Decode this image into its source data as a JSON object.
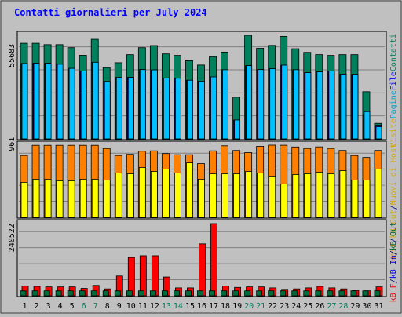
{
  "chart_data": {
    "type": "bar",
    "title": "Contatti giornalieri per July 2024",
    "categories": [
      "1",
      "2",
      "3",
      "4",
      "5",
      "6",
      "7",
      "8",
      "9",
      "10",
      "11",
      "12",
      "13",
      "14",
      "15",
      "16",
      "17",
      "18",
      "19",
      "20",
      "21",
      "22",
      "23",
      "24",
      "25",
      "26",
      "27",
      "28",
      "29",
      "30",
      "31"
    ],
    "weekend_days": [
      "6",
      "7",
      "13",
      "14",
      "20",
      "21",
      "27",
      "28"
    ],
    "panels": [
      {
        "id": "top",
        "y_tick_label": "55683",
        "y_tick_value": 55683,
        "legend": [
          "Visite",
          "Pagine",
          "File",
          "Contatti"
        ],
        "series": [
          {
            "name": "Contatti",
            "color": "#00805c",
            "values": [
              62800,
              62800,
              61900,
              61900,
              59900,
              54900,
              65400,
              46800,
              50000,
              55300,
              59900,
              61300,
              55800,
              54800,
              51300,
              48500,
              53800,
              57000,
              27400,
              68000,
              59500,
              61400,
              67300,
              59200,
              56800,
              55300,
              54800,
              55300,
              55300,
              31000,
              10200
            ]
          },
          {
            "name": "File",
            "color": "#0000ff",
            "values": [
              49500,
              49700,
              49700,
              49000,
              46300,
              44600,
              50300,
              37700,
              40300,
              40400,
              45500,
              45300,
              40000,
              39800,
              38500,
              37900,
              40700,
              45400,
              12400,
              48100,
              45500,
              46100,
              48400,
              45400,
              43500,
              44000,
              44600,
              42500,
              42400,
              16100,
              9000
            ]
          },
          {
            "name": "Pagine",
            "color": "#00c0ff",
            "values": [
              49500,
              49700,
              49700,
              49000,
              46300,
              44600,
              50300,
              37700,
              40300,
              40400,
              45500,
              45300,
              40000,
              39800,
              38500,
              37900,
              40700,
              45400,
              12400,
              48100,
              45500,
              46100,
              48400,
              45400,
              43500,
              44000,
              44600,
              42500,
              42400,
              17900,
              8000
            ]
          },
          {
            "name": "Visite",
            "color": "#00c0ff",
            "values": [
              0,
              0,
              0,
              0,
              0,
              0,
              0,
              0,
              0,
              0,
              0,
              0,
              0,
              0,
              0,
              0,
              0,
              0,
              0,
              0,
              0,
              0,
              0,
              0,
              0,
              0,
              0,
              0,
              0,
              0,
              0
            ]
          }
        ]
      },
      {
        "id": "middle",
        "y_tick_label": "961",
        "y_tick_value": 961,
        "legend": [
          "Host",
          "kB Out",
          "Nuovi di Host"
        ],
        "series": [
          {
            "name": "Host",
            "color": "#ff8000",
            "values": [
              795,
              926,
              926,
              926,
              926,
              926,
              926,
              885,
              795,
              810,
              850,
              855,
              820,
              805,
              805,
              690,
              855,
              920,
              860,
              832,
              913,
              928,
              927,
              905,
              886,
              906,
              886,
              860,
              795,
              770,
              860
            ]
          },
          {
            "name": "Nuovi di Host",
            "color": "#ffff00",
            "values": [
              450,
              490,
              490,
              470,
              470,
              490,
              490,
              480,
              570,
              560,
              640,
              590,
              620,
              570,
              700,
              490,
              560,
              560,
              560,
              590,
              570,
              530,
              430,
              550,
              560,
              580,
              560,
              600,
              480,
              480,
              620
            ]
          }
        ]
      },
      {
        "id": "bottom",
        "y_tick_label": "240522",
        "y_tick_value": 240522,
        "legend": [
          "kB In",
          "kB Out",
          "kB F"
        ],
        "series": [
          {
            "name": "kB F",
            "color": "#ff0000",
            "values": [
              40000,
              38000,
              36000,
              36000,
              36000,
              30000,
              42000,
              28000,
              80000,
              155000,
              162000,
              162000,
              76000,
              32000,
              32000,
              210000,
              292000,
              40000,
              34000,
              36000,
              36000,
              32000,
              26000,
              28000,
              32000,
              38000,
              32000,
              28000,
              22000,
              20000,
              36000
            ]
          },
          {
            "name": "kB Out",
            "color": "#006c3d",
            "values": [
              20000,
              20000,
              20000,
              20000,
              20000,
              20000,
              20000,
              20000,
              20000,
              20000,
              20000,
              20000,
              20000,
              20000,
              20000,
              20000,
              20000,
              20000,
              20000,
              20000,
              20000,
              20000,
              20000,
              20000,
              20000,
              20000,
              20000,
              20000,
              20000,
              20000,
              20000
            ]
          }
        ]
      }
    ],
    "right_label_groups": [
      {
        "panel": "top",
        "items": [
          {
            "text": "Visite",
            "color": "#d8a800"
          },
          {
            "text": "Pagine",
            "color": "#00a0d0"
          },
          {
            "text": "File",
            "color": "#0000ff"
          },
          {
            "text": "Contatti",
            "color": "#00805c"
          }
        ]
      },
      {
        "panel": "middle",
        "items": [
          {
            "text": "Host",
            "color": "#ff8000"
          },
          {
            "text": "/",
            "color": "#000080"
          },
          {
            "text": "kB Out",
            "color": "#d8a800"
          },
          {
            "text": "/",
            "color": "#000080"
          },
          {
            "text": "Nuovi di Host",
            "color": "#d8a800"
          }
        ]
      },
      {
        "panel": "bottom",
        "items": [
          {
            "text": "kB F",
            "color": "#ff0000"
          },
          {
            "text": "/",
            "color": "#000080"
          },
          {
            "text": "kB In",
            "color": "#0000ff"
          },
          {
            "text": "/",
            "color": "#000080"
          },
          {
            "text": "kB Out",
            "color": "#006c3d"
          }
        ]
      }
    ],
    "colors": {
      "background": "#c0c0c0",
      "panel_fill": "#c0c0c0",
      "title": "#0000ff",
      "weekday_label": "#000000",
      "weekend_label": "#00805c",
      "gridline": "#808080"
    }
  }
}
